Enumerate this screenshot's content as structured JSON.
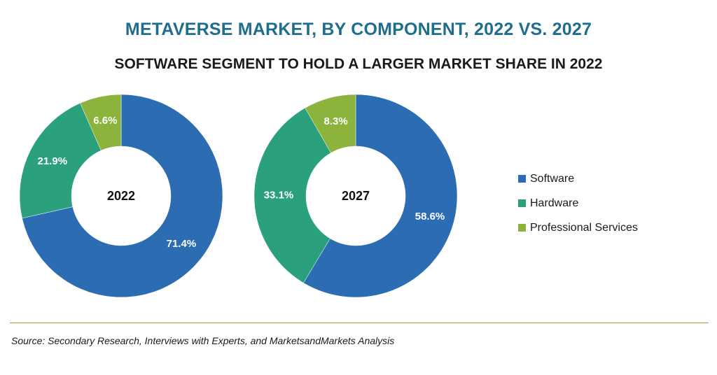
{
  "title": "METAVERSE MARKET, BY COMPONENT, 2022 VS. 2027",
  "subtitle": "SOFTWARE SEGMENT TO HOLD A LARGER MARKET SHARE IN 2022",
  "colors": {
    "Software": "#2b6cb3",
    "Hardware": "#2aa07c",
    "Professional Services": "#8cb33c"
  },
  "legend": [
    {
      "name": "Software",
      "color": "#2b6cb3"
    },
    {
      "name": "Hardware",
      "color": "#2aa07c"
    },
    {
      "name": "Professional Services",
      "color": "#8cb33c"
    }
  ],
  "chart_data": [
    {
      "type": "pie",
      "center_label": "2022",
      "slices": [
        {
          "name": "Software",
          "value": 71.4,
          "label": "71.4%"
        },
        {
          "name": "Hardware",
          "value": 21.9,
          "label": "21.9%"
        },
        {
          "name": "Professional Services",
          "value": 6.6,
          "label": "6.6%"
        }
      ]
    },
    {
      "type": "pie",
      "center_label": "2027",
      "slices": [
        {
          "name": "Software",
          "value": 58.6,
          "label": "58.6%"
        },
        {
          "name": "Hardware",
          "value": 33.1,
          "label": "33.1%"
        },
        {
          "name": "Professional Services",
          "value": 8.3,
          "label": "8.3%"
        }
      ]
    }
  ],
  "source": "Source: Secondary Research, Interviews with Experts, and MarketsandMarkets Analysis"
}
